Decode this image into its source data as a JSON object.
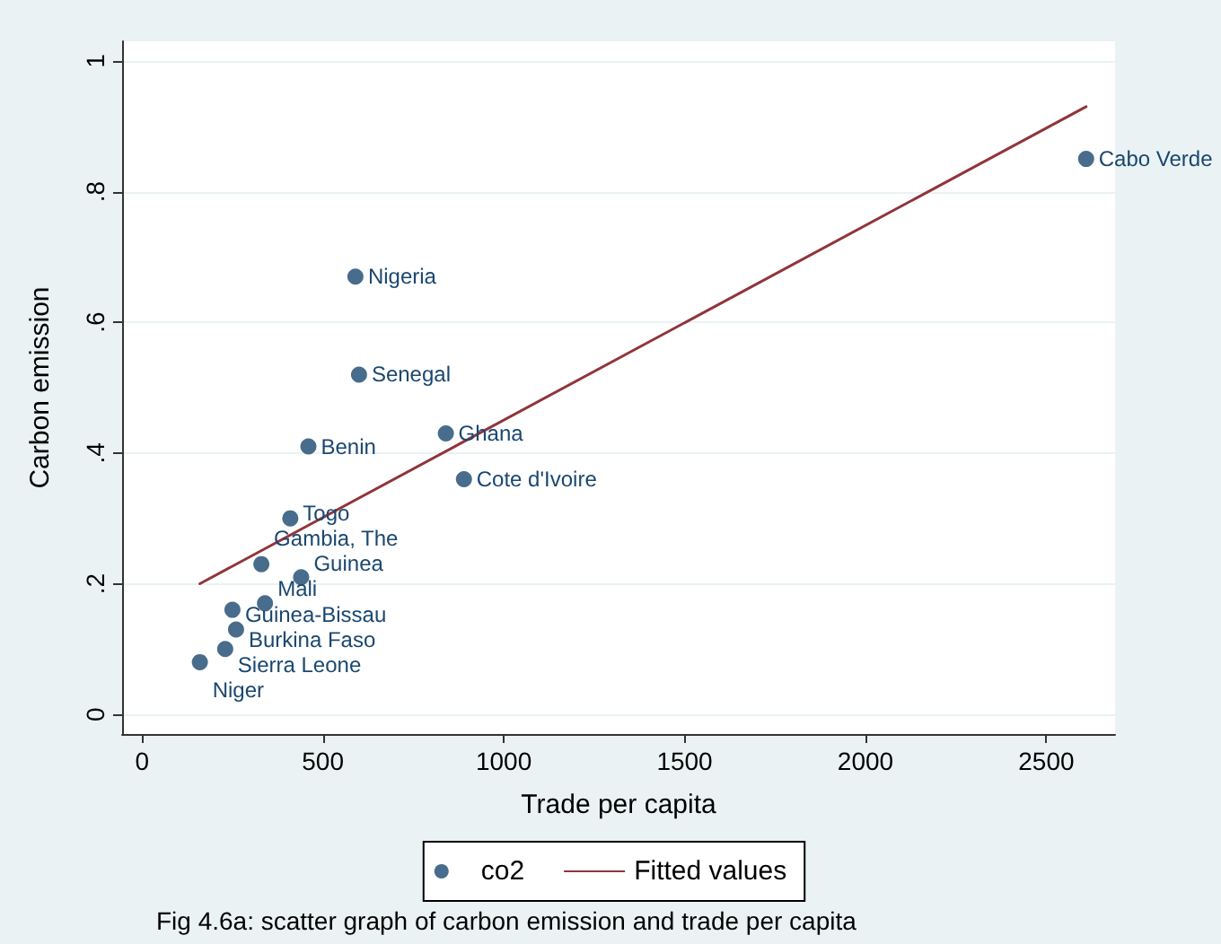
{
  "chart_data": {
    "type": "scatter",
    "title": "Fig 4.6a: scatter graph of carbon emission and trade per capita",
    "xlabel": "Trade per capita",
    "ylabel": "Carbon emission",
    "series": [
      {
        "name": "co2",
        "marker": "circle",
        "color": "#1a476f",
        "x": [
          2610,
          590,
          600,
          840,
          460,
          890,
          410,
          330,
          440,
          340,
          250,
          260,
          230,
          160
        ],
        "values": [
          0.85,
          0.67,
          0.52,
          0.43,
          0.41,
          0.36,
          0.3,
          0.23,
          0.21,
          0.17,
          0.16,
          0.13,
          0.1,
          0.08
        ]
      },
      {
        "name": "Fitted values",
        "type": "line",
        "marker": "none",
        "line_style": "solid",
        "color": "#90353b",
        "x": [
          160,
          2610
        ],
        "values": [
          0.2,
          0.93
        ]
      }
    ],
    "xlim": [
      -55,
      2690
    ],
    "xticks": [
      0,
      500,
      1000,
      1500,
      2000,
      2500
    ],
    "ylim": [
      -0.03,
      1.03
    ],
    "yticks": [
      0,
      {
        "value": 0.2,
        "label": ".2"
      },
      {
        "value": 0.4,
        "label": ".4"
      },
      {
        "value": 0.6,
        "label": ".6"
      },
      {
        "value": 0.8,
        "label": ".8"
      },
      1
    ],
    "grid": "y",
    "legend": "bottom",
    "annotations": [
      {
        "text": "Cabo Verde",
        "x": 2610,
        "y": 0.85
      },
      {
        "text": "Nigeria",
        "x": 590,
        "y": 0.67
      },
      {
        "text": "Senegal",
        "x": 600,
        "y": 0.52
      },
      {
        "text": "Ghana",
        "x": 840,
        "y": 0.43
      },
      {
        "text": "Benin",
        "x": 460,
        "y": 0.41
      },
      {
        "text": "Cote d'Ivoire",
        "x": 890,
        "y": 0.36
      },
      {
        "text": "Togo",
        "x": 410,
        "y": 0.3
      },
      {
        "text": "Gambia, The",
        "x": 330,
        "y": 0.23
      },
      {
        "text": "Guinea",
        "x": 440,
        "y": 0.21
      },
      {
        "text": "Mali",
        "x": 340,
        "y": 0.17
      },
      {
        "text": "Guinea-Bissau",
        "x": 250,
        "y": 0.16
      },
      {
        "text": "Burkina Faso",
        "x": 260,
        "y": 0.13
      },
      {
        "text": "Sierra Leone",
        "x": 230,
        "y": 0.1
      },
      {
        "text": "Niger",
        "x": 160,
        "y": 0.08
      }
    ]
  }
}
